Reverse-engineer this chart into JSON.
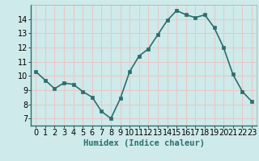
{
  "x": [
    0,
    1,
    2,
    3,
    4,
    5,
    6,
    7,
    8,
    9,
    10,
    11,
    12,
    13,
    14,
    15,
    16,
    17,
    18,
    19,
    20,
    21,
    22,
    23
  ],
  "y": [
    10.3,
    9.7,
    9.1,
    9.5,
    9.4,
    8.9,
    8.5,
    7.5,
    7.0,
    8.4,
    10.3,
    11.4,
    11.9,
    12.9,
    13.9,
    14.6,
    14.3,
    14.1,
    14.3,
    13.4,
    12.0,
    10.1,
    8.9,
    8.2
  ],
  "line_color": "#2d6e6e",
  "marker_color": "#2d6e6e",
  "bg_color": "#ceeaea",
  "grid_color": "#e8c8c8",
  "xlabel": "Humidex (Indice chaleur)",
  "ylim": [
    6.5,
    15.0
  ],
  "xlim": [
    -0.5,
    23.5
  ],
  "yticks": [
    7,
    8,
    9,
    10,
    11,
    12,
    13,
    14
  ],
  "xticks": [
    0,
    1,
    2,
    3,
    4,
    5,
    6,
    7,
    8,
    9,
    10,
    11,
    12,
    13,
    14,
    15,
    16,
    17,
    18,
    19,
    20,
    21,
    22,
    23
  ],
  "xlabel_fontsize": 7.5,
  "tick_fontsize": 7,
  "line_width": 1.2,
  "marker_size": 3
}
